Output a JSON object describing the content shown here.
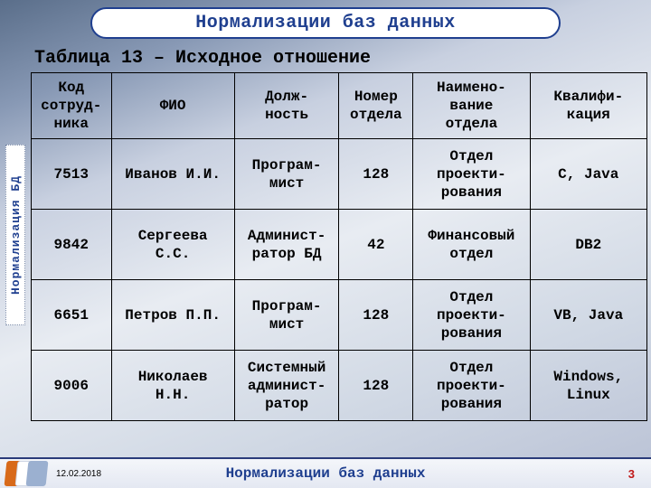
{
  "title": "Нормализации баз данных",
  "subtitle": "Таблица 13 – Исходное отношение",
  "side_label": "Нормализация БД",
  "footer": {
    "date": "12.02.2018",
    "title": "Нормализации баз данных",
    "page": "3"
  },
  "table": {
    "columns": [
      "Код\nсотруд-\nника",
      "ФИО",
      "Долж-\nность",
      "Номер\nотдела",
      "Наимено-\nвание\nотдела",
      "Квалифи-\nкация"
    ],
    "rows": [
      [
        "7513",
        "Иванов И.И.",
        "Програм-\nмист",
        "128",
        "Отдел\nпроекти-\nрования",
        "C, Java"
      ],
      [
        "9842",
        "Сергеева\nС.С.",
        "Админист-\nратор БД",
        "42",
        "Финансовый\nотдел",
        "DB2"
      ],
      [
        "6651",
        "Петров П.П.",
        "Програм-\nмист",
        "128",
        "Отдел\nпроекти-\nрования",
        "VB, Java"
      ],
      [
        "9006",
        "Николаев\nН.Н.",
        "Системный\nадминист-\nратор",
        "128",
        "Отдел\nпроекти-\nрования",
        "Windows,\nLinux"
      ]
    ],
    "border_color": "#000000",
    "header_fontsize": 16,
    "cell_fontsize": 16
  },
  "colors": {
    "title_border": "#1f3f8f",
    "title_text": "#1f3f8f",
    "pagenum": "#c01818",
    "footer_rule": "#2a3b7a"
  }
}
